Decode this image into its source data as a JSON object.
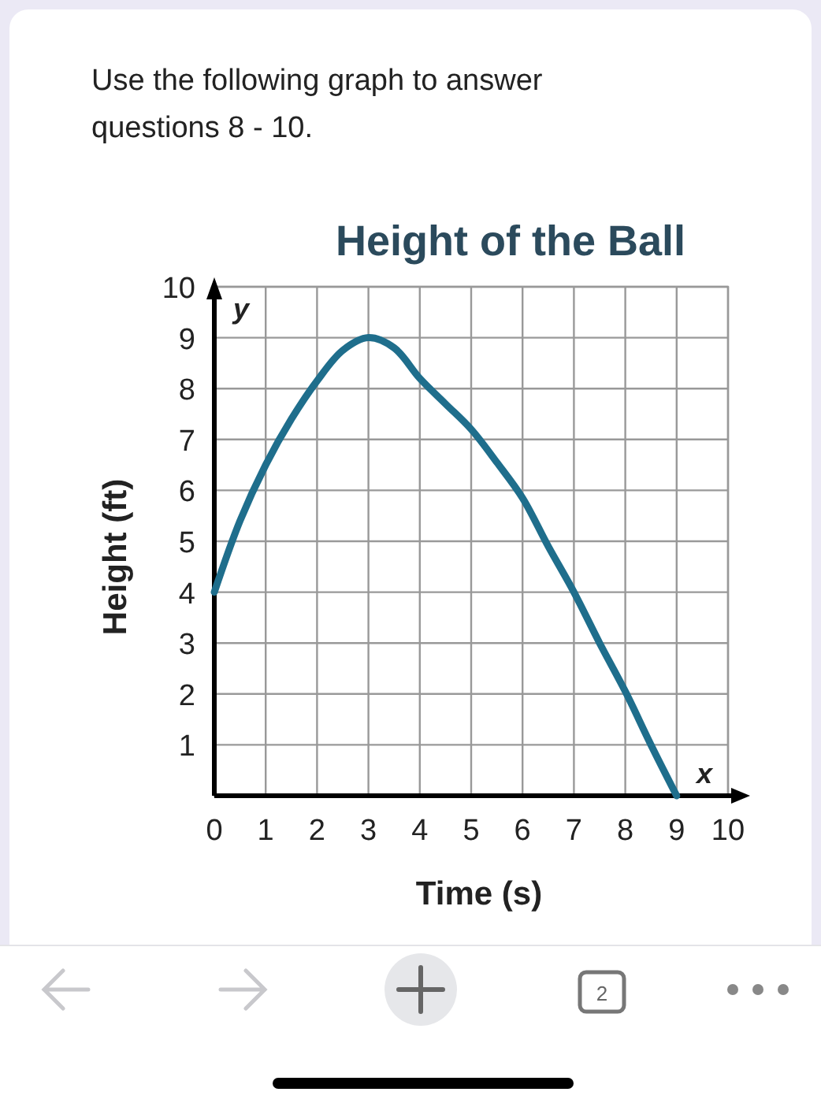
{
  "chart_data": {
    "type": "line",
    "title": "Height of the Ball",
    "xlabel": "Time (s)",
    "ylabel": "Height (ft)",
    "annotations": [
      "Use the following graph to answer questions 8 - 10.",
      "y",
      "x",
      "2"
    ],
    "x": [
      0,
      0.5,
      1,
      1.5,
      2,
      2.5,
      3,
      3.5,
      4,
      4.5,
      5,
      5.5,
      6,
      6.5,
      7,
      7.5,
      8,
      8.5,
      9
    ],
    "series": [
      {
        "color": "#1f6e8c",
        "values": [
          4,
          5.4,
          6.5,
          7.4,
          8.15,
          8.75,
          9,
          8.8,
          8.2,
          7.7,
          7.2,
          6.55,
          5.85,
          4.9,
          4,
          3,
          2.05,
          1,
          0
        ]
      }
    ],
    "xlim": [
      0,
      10
    ],
    "ylim": [
      0,
      10
    ],
    "xticks": [
      0,
      1,
      2,
      3,
      4,
      5,
      6,
      7,
      8,
      9,
      10
    ],
    "yticks": [
      1,
      2,
      3,
      4,
      5,
      6,
      7,
      8,
      9,
      10
    ],
    "grid": true,
    "marker": "none",
    "line_style": "solid"
  }
}
